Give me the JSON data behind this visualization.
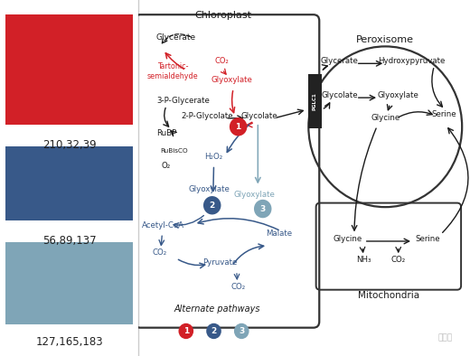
{
  "color1": [
    210,
    32,
    39
  ],
  "color2": [
    56,
    89,
    137
  ],
  "color3": [
    127,
    165,
    183
  ],
  "label1": "210,32,39",
  "label2": "56,89,137",
  "label3": "127,165,183",
  "bg_color": "#ffffff",
  "text_color": "#222222",
  "title_chloroplast": "Chloroplast",
  "title_peroxisome": "Peroxisome",
  "title_mitochondria": "Mitochondria",
  "legend_title": "Alternate pathways",
  "figsize": [
    5.2,
    3.94
  ],
  "dpi": 100
}
